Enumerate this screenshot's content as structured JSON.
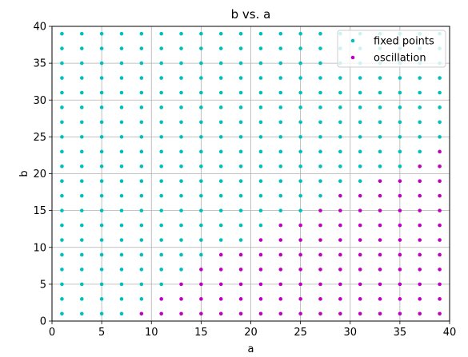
{
  "chart_data": {
    "type": "scatter",
    "title": "b vs. a",
    "xlabel": "a",
    "ylabel": "b",
    "xlim": [
      0,
      40
    ],
    "ylim": [
      0,
      40
    ],
    "xticks": [
      "0",
      "5",
      "10",
      "15",
      "20",
      "25",
      "30",
      "35",
      "40"
    ],
    "yticks": [
      "0",
      "5",
      "10",
      "15",
      "20",
      "25",
      "30",
      "35",
      "40"
    ],
    "grid": true,
    "legend_position": "top-right",
    "a_values": [
      1,
      3,
      5,
      7,
      9,
      11,
      13,
      15,
      17,
      19,
      21,
      23,
      25,
      27,
      29,
      31,
      33,
      35,
      37,
      39
    ],
    "b_values": [
      1,
      3,
      5,
      7,
      9,
      11,
      13,
      15,
      17,
      19,
      21,
      23,
      25,
      27,
      29,
      31,
      33,
      35,
      37,
      39
    ],
    "series": [
      {
        "name": "fixed points",
        "color": "#00bfbf",
        "points": "all grid points (a, b) not listed under oscillation"
      },
      {
        "name": "oscillation",
        "color": "#bf00bf",
        "b_threshold_by_a": {
          "1": 0,
          "3": 0,
          "5": 0,
          "7": 0,
          "9": 1,
          "11": 3,
          "13": 5,
          "15": 7,
          "17": 9,
          "19": 9,
          "21": 11,
          "23": 13,
          "25": 13,
          "27": 15,
          "29": 17,
          "31": 17,
          "33": 19,
          "35": 19,
          "37": 21,
          "39": 23
        }
      }
    ]
  }
}
